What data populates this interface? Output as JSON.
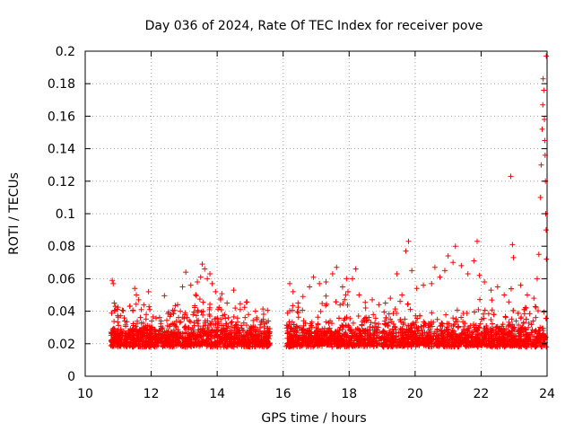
{
  "chart_data": {
    "type": "scatter",
    "title": "Day 036 of 2024, Rate Of TEC Index for receiver pove",
    "xlabel": "GPS time / hours",
    "ylabel": "ROTI / TECUs",
    "xlim": [
      10,
      24
    ],
    "ylim": [
      0,
      0.2
    ],
    "x_ticks": [
      10,
      12,
      14,
      16,
      18,
      20,
      22,
      24
    ],
    "y_ticks": [
      0,
      0.02,
      0.04,
      0.06,
      0.08,
      0.1,
      0.12,
      0.14,
      0.16,
      0.18,
      0.2
    ],
    "x_tick_labels": [
      "10",
      "12",
      "14",
      "16",
      "18",
      "20",
      "22",
      "24"
    ],
    "y_tick_labels": [
      "0",
      "0.02",
      "0.04",
      "0.06",
      "0.08",
      "0.1",
      "0.12",
      "0.14",
      "0.16",
      "0.18",
      "0.2"
    ],
    "grid": true,
    "marker": "+",
    "color": "#ff0000",
    "series": [
      {
        "name": "ROTI",
        "note": "Dense cloud of ROTI samples; data gap between ~15.6 and ~16.1 h",
        "points": [
          [
            10.82,
            0.059
          ],
          [
            10.85,
            0.057
          ],
          [
            10.88,
            0.045
          ],
          [
            10.9,
            0.04
          ],
          [
            11.0,
            0.028
          ],
          [
            11.2,
            0.034
          ],
          [
            11.35,
            0.043
          ],
          [
            11.5,
            0.054
          ],
          [
            11.55,
            0.05
          ],
          [
            11.62,
            0.047
          ],
          [
            11.7,
            0.041
          ],
          [
            11.85,
            0.038
          ],
          [
            12.0,
            0.03
          ],
          [
            12.3,
            0.034
          ],
          [
            12.6,
            0.038
          ],
          [
            12.8,
            0.044
          ],
          [
            12.95,
            0.055
          ],
          [
            13.05,
            0.064
          ],
          [
            13.2,
            0.056
          ],
          [
            13.4,
            0.058
          ],
          [
            13.5,
            0.061
          ],
          [
            13.55,
            0.069
          ],
          [
            13.62,
            0.066
          ],
          [
            13.7,
            0.06
          ],
          [
            13.78,
            0.063
          ],
          [
            13.85,
            0.057
          ],
          [
            13.95,
            0.052
          ],
          [
            14.1,
            0.048
          ],
          [
            14.3,
            0.045
          ],
          [
            14.5,
            0.053
          ],
          [
            14.7,
            0.041
          ],
          [
            14.95,
            0.038
          ],
          [
            15.2,
            0.036
          ],
          [
            15.4,
            0.035
          ],
          [
            15.55,
            0.034
          ],
          [
            16.2,
            0.057
          ],
          [
            16.3,
            0.052
          ],
          [
            16.45,
            0.045
          ],
          [
            16.6,
            0.049
          ],
          [
            16.8,
            0.055
          ],
          [
            16.92,
            0.061
          ],
          [
            17.1,
            0.057
          ],
          [
            17.3,
            0.058
          ],
          [
            17.5,
            0.063
          ],
          [
            17.62,
            0.067
          ],
          [
            17.8,
            0.055
          ],
          [
            17.92,
            0.06
          ],
          [
            18.1,
            0.06
          ],
          [
            18.2,
            0.066
          ],
          [
            18.3,
            0.05
          ],
          [
            18.5,
            0.042
          ],
          [
            18.7,
            0.047
          ],
          [
            18.9,
            0.044
          ],
          [
            19.1,
            0.045
          ],
          [
            19.25,
            0.048
          ],
          [
            19.45,
            0.063
          ],
          [
            19.6,
            0.05
          ],
          [
            19.72,
            0.077
          ],
          [
            19.8,
            0.083
          ],
          [
            19.9,
            0.065
          ],
          [
            20.05,
            0.054
          ],
          [
            20.25,
            0.056
          ],
          [
            20.5,
            0.057
          ],
          [
            20.6,
            0.067
          ],
          [
            20.75,
            0.061
          ],
          [
            20.9,
            0.065
          ],
          [
            21.0,
            0.074
          ],
          [
            21.15,
            0.07
          ],
          [
            21.22,
            0.08
          ],
          [
            21.4,
            0.068
          ],
          [
            21.6,
            0.063
          ],
          [
            21.78,
            0.071
          ],
          [
            21.88,
            0.083
          ],
          [
            21.95,
            0.062
          ],
          [
            22.1,
            0.058
          ],
          [
            22.3,
            0.053
          ],
          [
            22.5,
            0.055
          ],
          [
            22.7,
            0.05
          ],
          [
            22.9,
            0.123
          ],
          [
            22.95,
            0.081
          ],
          [
            22.98,
            0.073
          ],
          [
            23.2,
            0.056
          ],
          [
            23.4,
            0.05
          ],
          [
            23.6,
            0.048
          ],
          [
            23.7,
            0.06
          ],
          [
            23.75,
            0.075
          ],
          [
            23.8,
            0.11
          ],
          [
            23.82,
            0.13
          ],
          [
            23.85,
            0.152
          ],
          [
            23.87,
            0.167
          ],
          [
            23.88,
            0.183
          ],
          [
            23.9,
            0.176
          ],
          [
            23.92,
            0.158
          ],
          [
            23.93,
            0.145
          ],
          [
            23.94,
            0.136
          ],
          [
            23.95,
            0.12
          ],
          [
            23.96,
            0.1
          ],
          [
            23.97,
            0.09
          ],
          [
            23.975,
            0.197
          ],
          [
            23.98,
            0.072
          ]
        ]
      }
    ]
  }
}
